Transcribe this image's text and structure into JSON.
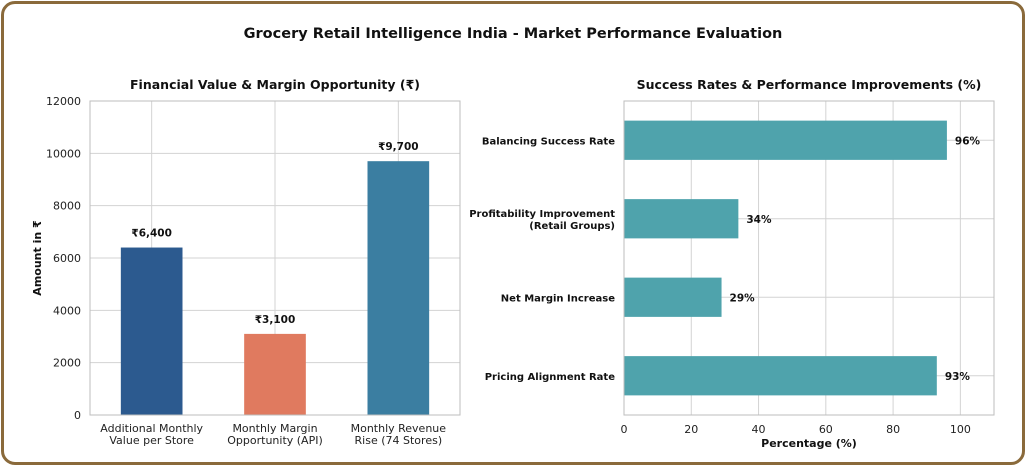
{
  "figure": {
    "title": "Grocery Retail Intelligence India - Market Performance Evaluation"
  },
  "chart_data": [
    {
      "type": "bar",
      "title": "Financial Value & Margin Opportunity (₹)",
      "xlabel": "",
      "ylabel": "Amount in ₹",
      "ylim": [
        0,
        12000
      ],
      "yticks": [
        0,
        2000,
        4000,
        6000,
        8000,
        10000,
        12000
      ],
      "categories": [
        [
          "Additional Monthly",
          "Value per Store"
        ],
        [
          "Monthly Margin",
          "Opportunity (API)"
        ],
        [
          "Monthly Revenue",
          "Rise (74 Stores)"
        ]
      ],
      "values": [
        6400,
        3100,
        9700
      ],
      "value_labels": [
        "₹6,400",
        "₹3,100",
        "₹9,700"
      ],
      "colors": [
        "#2c5a8f",
        "#e07a5f",
        "#3b7ea1"
      ],
      "grid": true
    },
    {
      "type": "bar",
      "orientation": "horizontal",
      "title": "Success Rates & Performance Improvements (%)",
      "xlabel": "Percentage (%)",
      "ylabel": "",
      "xlim": [
        0,
        110
      ],
      "xticks": [
        0,
        20,
        40,
        60,
        80,
        100
      ],
      "categories": [
        [
          "Balancing Success Rate"
        ],
        [
          "Profitability Improvement",
          "(Retail Groups)"
        ],
        [
          "Net Margin Increase"
        ],
        [
          "Pricing Alignment Rate"
        ]
      ],
      "values": [
        96,
        34,
        29,
        93
      ],
      "value_labels": [
        "96%",
        "34%",
        "29%",
        "93%"
      ],
      "colors": [
        "#4fa3ac"
      ],
      "grid": true
    }
  ]
}
